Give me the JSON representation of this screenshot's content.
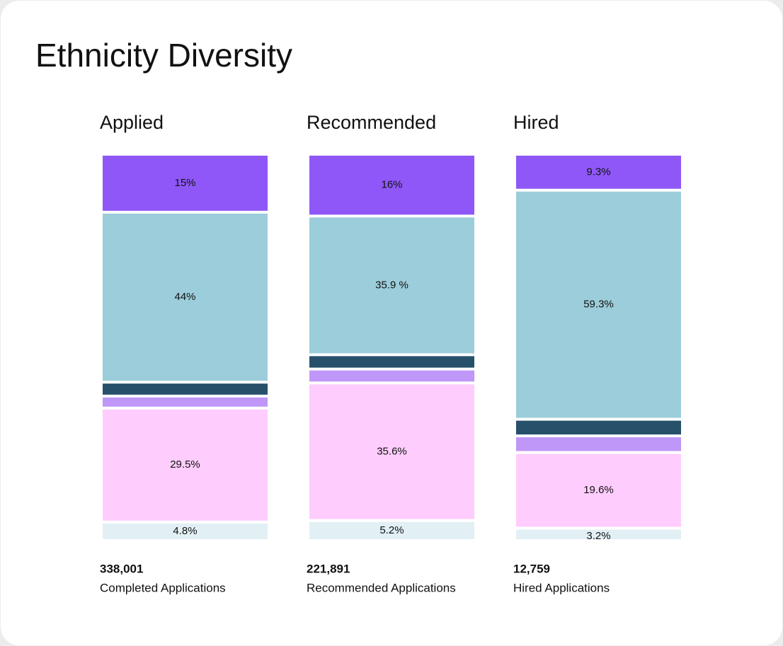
{
  "chart_data": {
    "type": "stacked_bar",
    "title": "Ethnicity Diversity",
    "categories": [
      "Applied",
      "Recommended",
      "Hired"
    ],
    "ylim": [
      0,
      100
    ],
    "series": [
      {
        "color": "#8f57f7",
        "label_color": "#ffffff",
        "values": [
          15,
          16,
          9.3
        ],
        "value_labels": [
          "15%",
          "16%",
          "9.3%"
        ]
      },
      {
        "color": "#9ccdda",
        "label_color": "#111111",
        "values": [
          44,
          35.9,
          59.3
        ],
        "value_labels": [
          "44%",
          "35.9 %",
          "59.3%"
        ]
      },
      {
        "color": "#27506a",
        "values": [
          3.6,
          3.7,
          4.3
        ]
      },
      {
        "color": "#bf97f8",
        "values": [
          3.1,
          3.6,
          4.3
        ]
      },
      {
        "color": "#fecdfd",
        "label_color": "#111111",
        "values": [
          29.5,
          35.6,
          19.6
        ],
        "value_labels": [
          "29.5%",
          "35.6%",
          "19.6%"
        ]
      },
      {
        "color": "#e2f0f5",
        "label_color": "#111111",
        "values": [
          4.8,
          5.2,
          3.2
        ],
        "value_labels": [
          "4.8%",
          "5.2%",
          "3.2%"
        ]
      }
    ],
    "totals": [
      {
        "value": 338001,
        "label": "338,001"
      },
      {
        "value": 221891,
        "label": "221,891"
      },
      {
        "value": 12759,
        "label": "12,759"
      }
    ],
    "total_captions": [
      "Completed Applications",
      "Recommended Applications",
      "Hired Applications"
    ]
  }
}
